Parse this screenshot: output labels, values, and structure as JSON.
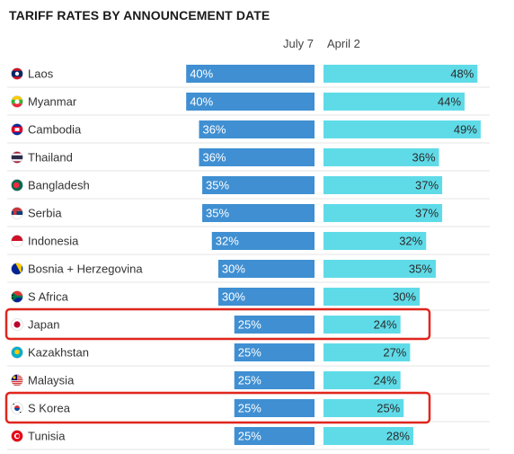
{
  "title": "TARIFF RATES BY ANNOUNCEMENT DATE",
  "colors": {
    "july7_bar": "#3f8fd2",
    "april2_bar": "#5fdbe8",
    "highlight": "#e0261d",
    "bar_text_left": "#ffffff",
    "bar_text_right": "#2a2a2a"
  },
  "chart_data": {
    "type": "bar",
    "title": "TARIFF RATES BY ANNOUNCEMENT DATE",
    "categories": [
      "Laos",
      "Myanmar",
      "Cambodia",
      "Thailand",
      "Bangladesh",
      "Serbia",
      "Indonesia",
      "Bosnia + Herzegovina",
      "S Africa",
      "Japan",
      "Kazakhstan",
      "Malaysia",
      "S Korea",
      "Tunisia"
    ],
    "series": [
      {
        "name": "July 7",
        "values": [
          40,
          40,
          36,
          36,
          35,
          35,
          32,
          30,
          30,
          25,
          25,
          25,
          25,
          25
        ],
        "labels": [
          "40%",
          "40%",
          "36%",
          "36%",
          "35%",
          "35%",
          "32%",
          "30%",
          "30%",
          "25%",
          "25%",
          "25%",
          "25%",
          "25%"
        ]
      },
      {
        "name": "April 2",
        "values": [
          48,
          44,
          49,
          36,
          37,
          37,
          32,
          35,
          30,
          24,
          27,
          24,
          25,
          28
        ],
        "labels": [
          "48%",
          "44%",
          "49%",
          "36%",
          "37%",
          "37%",
          "32%",
          "35%",
          "30%",
          "24%",
          "27%",
          "24%",
          "25%",
          "28%"
        ]
      }
    ],
    "highlighted": [
      "Japan",
      "S Korea"
    ],
    "flag_icons": [
      "laos-flag-icon",
      "myanmar-flag-icon",
      "cambodia-flag-icon",
      "thailand-flag-icon",
      "bangladesh-flag-icon",
      "serbia-flag-icon",
      "indonesia-flag-icon",
      "bosnia-flag-icon",
      "south-africa-flag-icon",
      "japan-flag-icon",
      "kazakhstan-flag-icon",
      "malaysia-flag-icon",
      "south-korea-flag-icon",
      "tunisia-flag-icon"
    ],
    "legend": "top-center",
    "grid": false
  }
}
